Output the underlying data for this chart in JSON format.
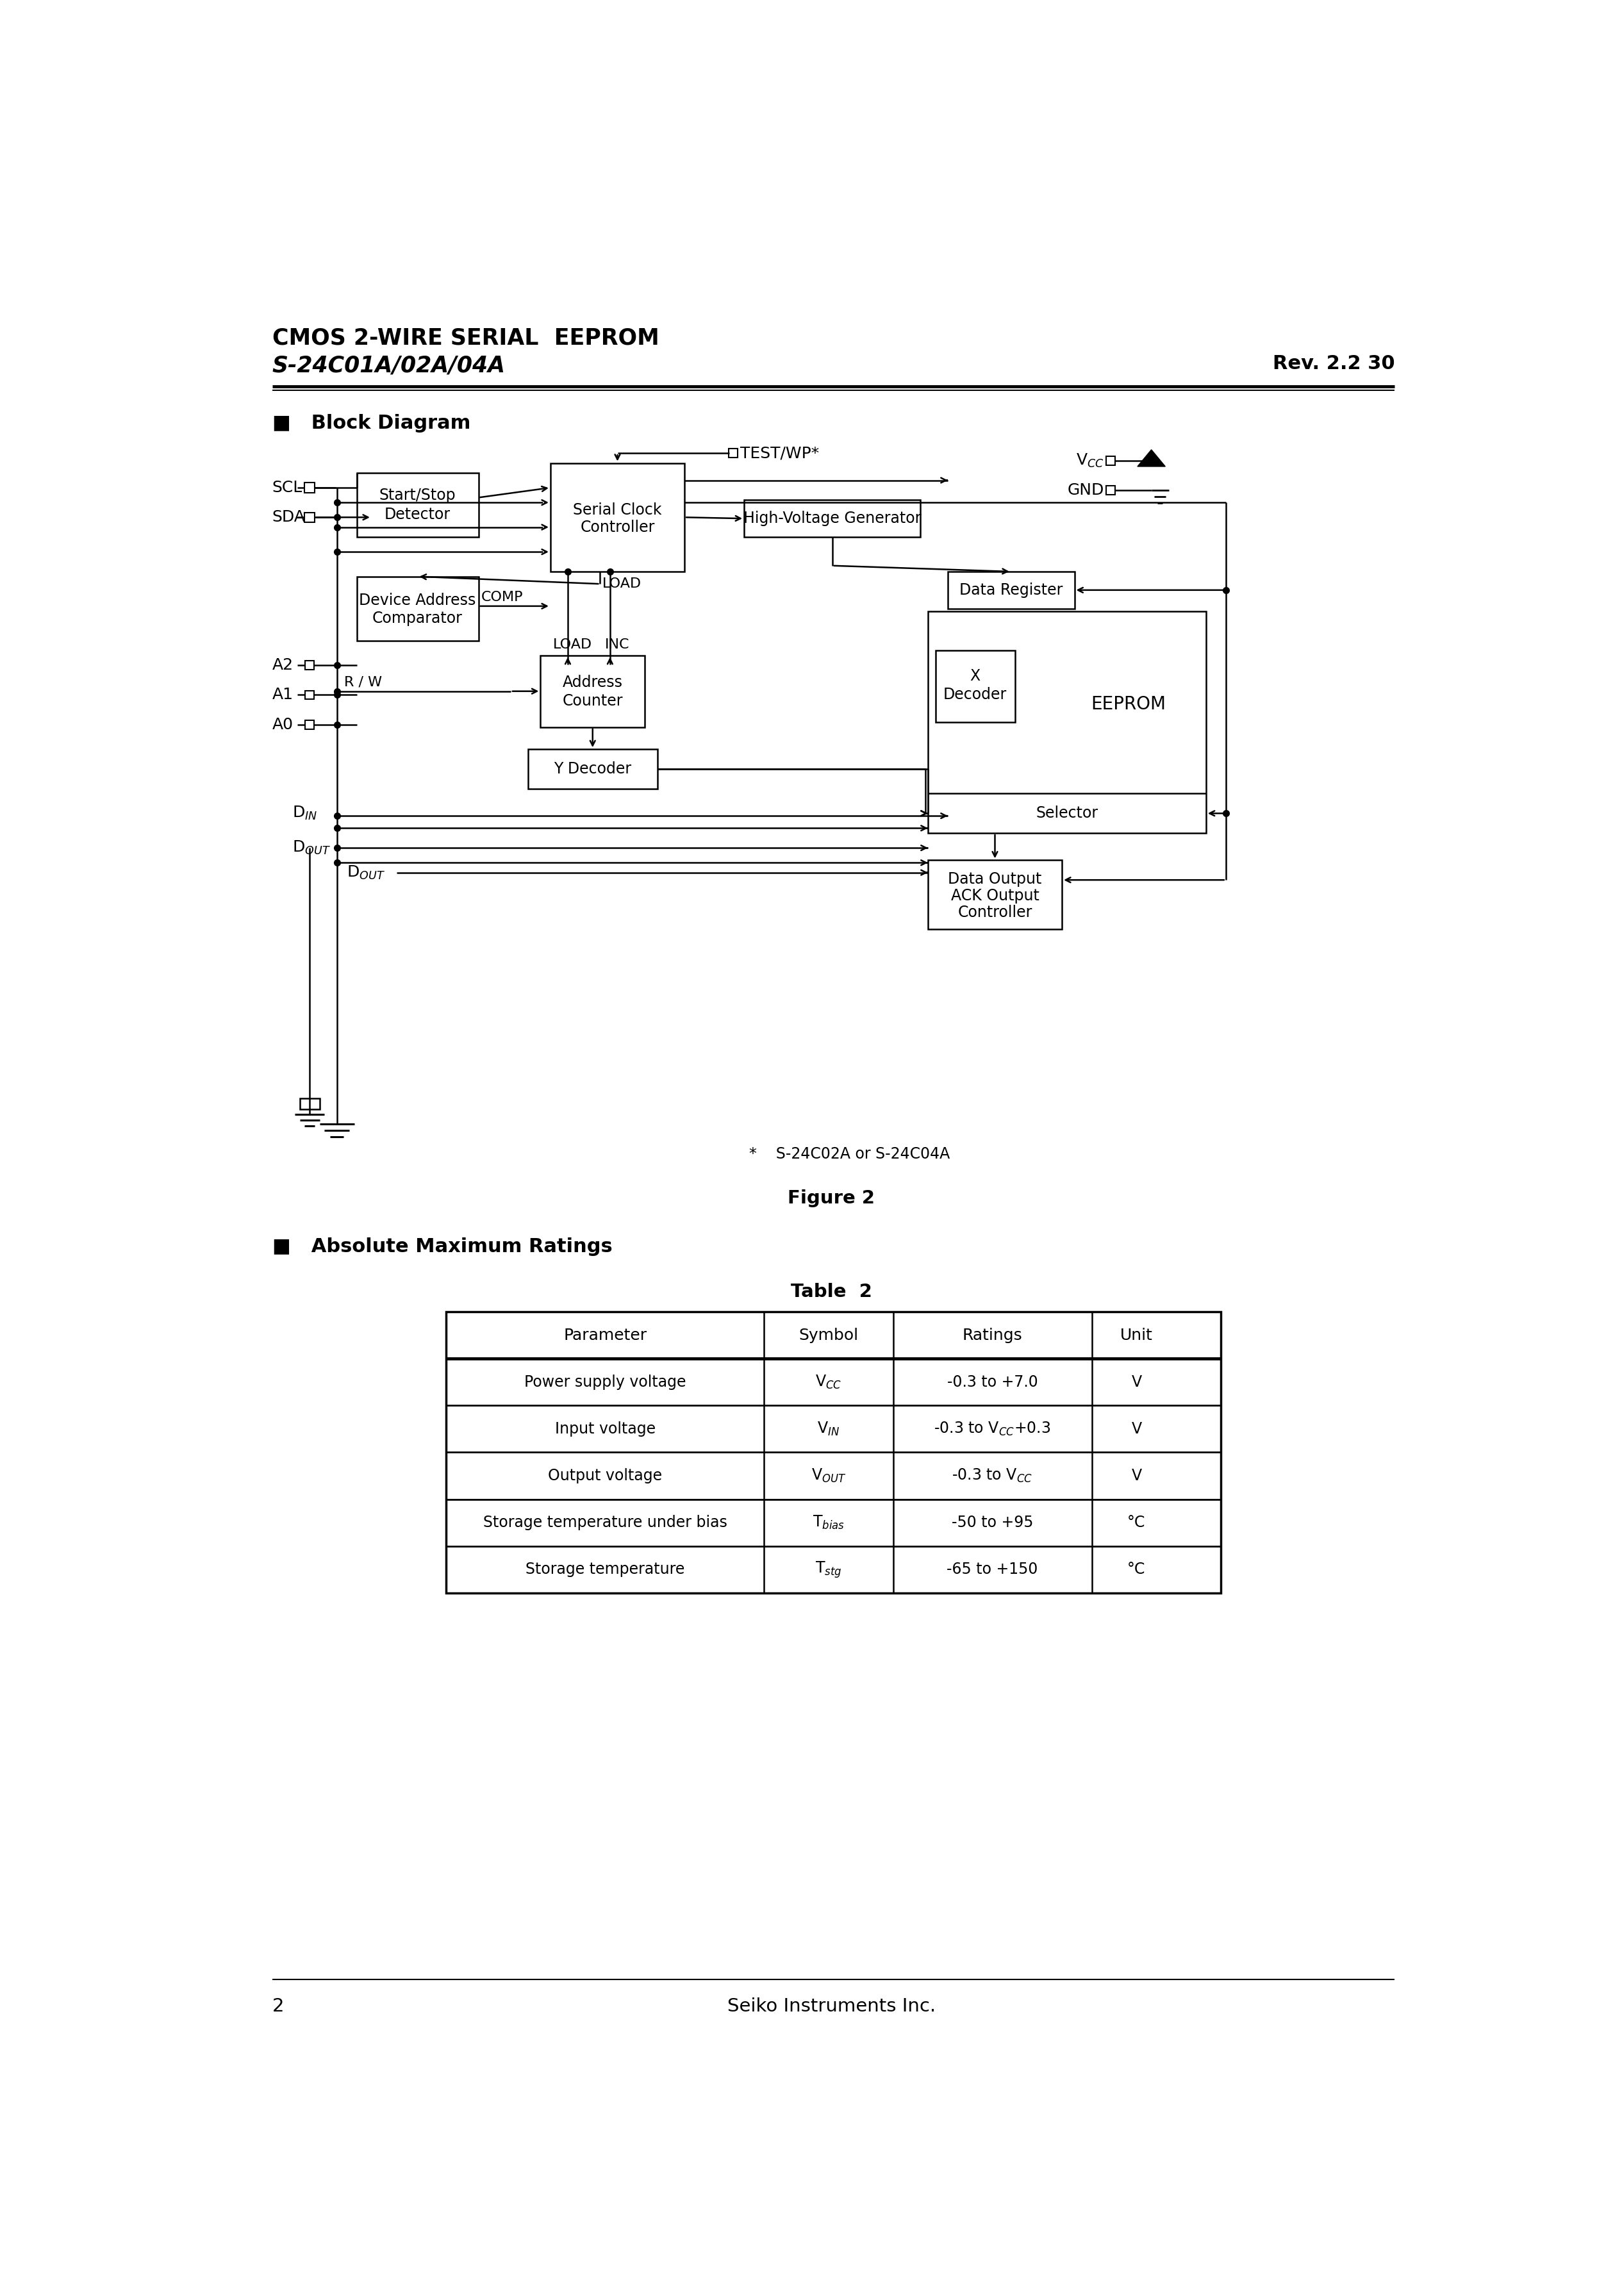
{
  "page_title_line1": "CMOS 2-WIRE SERIAL  EEPROM",
  "page_title_line2": "S-24C01A/02A/04A",
  "rev_text": "Rev. 2.2",
  "rev_num": "30",
  "section1_title": "Block Diagram",
  "figure_caption": "Figure 2",
  "section2_title": "Absolute Maximum Ratings",
  "table_caption": "Table  2",
  "table_headers": [
    "Parameter",
    "Symbol",
    "Ratings",
    "Unit"
  ],
  "table_rows": [
    [
      "Power supply voltage",
      "V_CC",
      "-0.3 to +7.0",
      "V"
    ],
    [
      "Input voltage",
      "V_IN",
      "-0.3 to V_CC+0.3",
      "V"
    ],
    [
      "Output voltage",
      "V_OUT",
      "-0.3 to V_CC",
      "V"
    ],
    [
      "Storage temperature under bias",
      "T_bias",
      "-50 to +95",
      "°C"
    ],
    [
      "Storage temperature",
      "T_stg",
      "-65 to +150",
      "°C"
    ]
  ],
  "footer_page": "2",
  "footer_company": "Seiko Instruments Inc.",
  "bg_color": "#ffffff"
}
